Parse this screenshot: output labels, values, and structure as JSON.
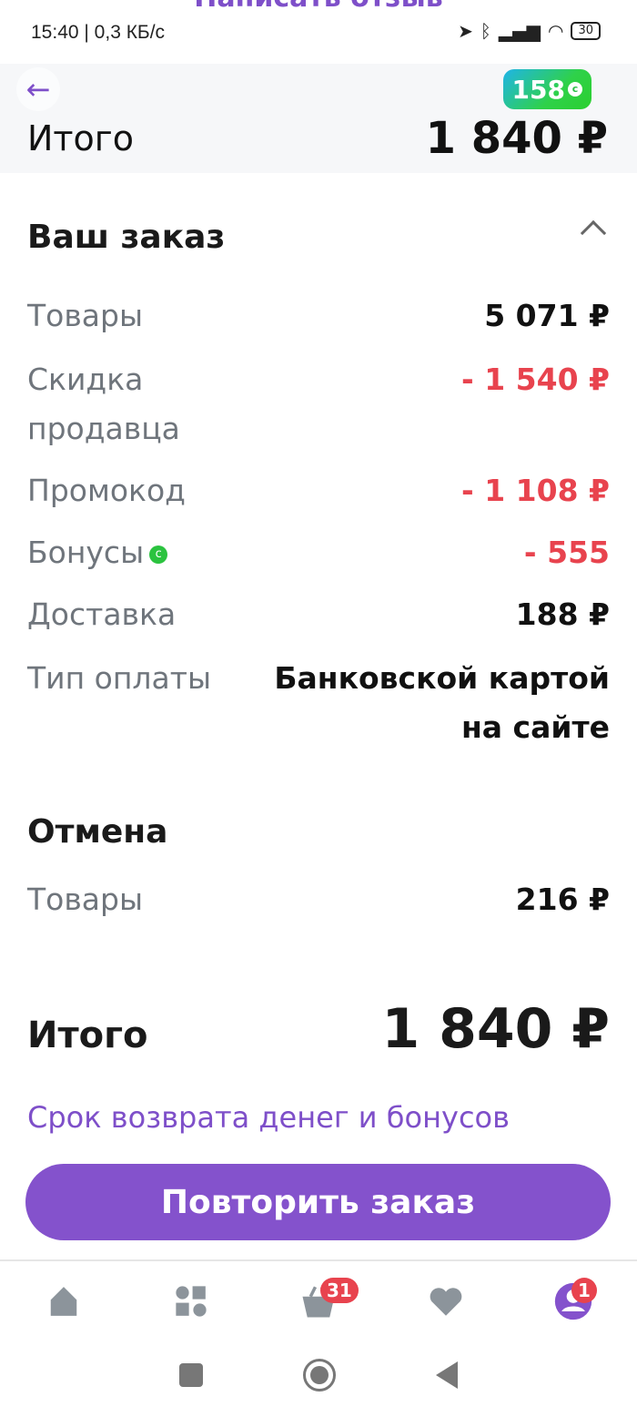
{
  "ghost_title": "Написать отзыв",
  "status": {
    "time": "15:40 | 0,3 КБ/с",
    "battery": "30"
  },
  "sticky": {
    "label": "Итого",
    "value": "1 840 ₽",
    "bonus": "158"
  },
  "order": {
    "title": "Ваш заказ",
    "rows": [
      {
        "label": "Товары",
        "value": "5 071 ₽",
        "red": false
      },
      {
        "label": "Скидка\nпродавца",
        "value": "- 1 540 ₽",
        "red": true
      },
      {
        "label": "Промокод",
        "value": "- 1 108 ₽",
        "red": true
      },
      {
        "label": "Бонусы",
        "value": "- 555",
        "red": true
      },
      {
        "label": "Доставка",
        "value": "188 ₽",
        "red": false
      },
      {
        "label": "Тип оплаты",
        "value": "Банковской картой\nна сайте",
        "red": false
      }
    ]
  },
  "cancel": {
    "title": "Отмена",
    "label": "Товары",
    "value": "216 ₽"
  },
  "total": {
    "label": "Итого",
    "value": "1 840 ₽"
  },
  "refund_link": "Срок возврата денег и бонусов",
  "repeat_button": "Повторить заказ",
  "nav": {
    "cart_badge": "31",
    "profile_badge": "1"
  },
  "colors": {
    "accent": "#8452cc",
    "red": "#e8434e",
    "bonus": "#2bc33f"
  }
}
